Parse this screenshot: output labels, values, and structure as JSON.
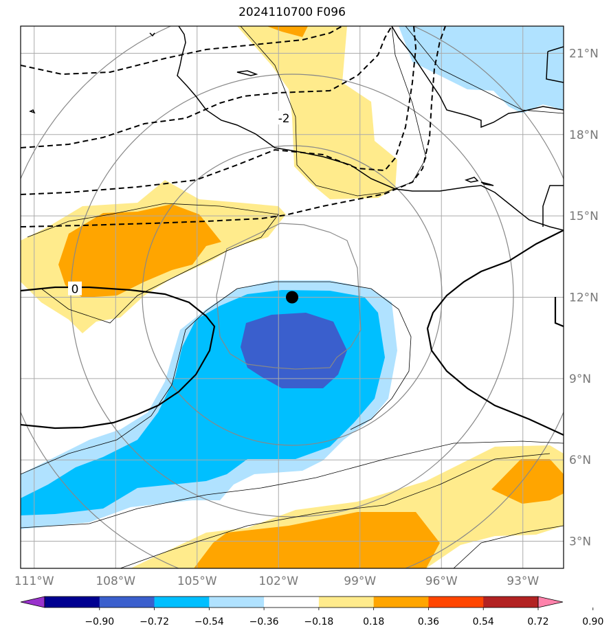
{
  "title": "2024110700 F096",
  "map": {
    "lon_range": [
      -111.5,
      -91.5
    ],
    "lat_range": [
      2.0,
      22.0
    ],
    "lon_ticks": [
      {
        "value": -111,
        "label": "111°W"
      },
      {
        "value": -108,
        "label": "108°W"
      },
      {
        "value": -105,
        "label": "105°W"
      },
      {
        "value": -102,
        "label": "102°W"
      },
      {
        "value": -99,
        "label": "99°W"
      },
      {
        "value": -96,
        "label": "96°W"
      },
      {
        "value": -93,
        "label": "93°W"
      }
    ],
    "lat_ticks": [
      {
        "value": 3,
        "label": "3°N"
      },
      {
        "value": 6,
        "label": "6°N"
      },
      {
        "value": 9,
        "label": "9°N"
      },
      {
        "value": 12,
        "label": "12°N"
      },
      {
        "value": 15,
        "label": "15°N"
      },
      {
        "value": 18,
        "label": "18°N"
      },
      {
        "value": 21,
        "label": "21°N"
      }
    ],
    "contour_labels": [
      {
        "text": "-2",
        "lon": -101.8,
        "lat": 18.6
      },
      {
        "text": "0",
        "lon": -109.5,
        "lat": 12.3
      }
    ],
    "center_marker": {
      "lon": -101.5,
      "lat": 12.0
    }
  },
  "colorbar": {
    "colors": [
      "#9932cc",
      "#000090",
      "#3a5fcd",
      "#00bfff",
      "#b0e2ff",
      "#ffffff",
      "#ffeb8c",
      "#ffa500",
      "#ff4500",
      "#b22222",
      "#ff82ab"
    ],
    "labels": [
      "−0.90",
      "−0.72",
      "−0.54",
      "−0.36",
      "−0.18",
      "0.18",
      "0.36",
      "0.54",
      "0.72",
      "0.90"
    ]
  },
  "colors": {
    "light_blue": "#b0e2ff",
    "blue": "#00bfff",
    "royal_blue": "#3a5fcd",
    "yellow": "#ffeb8c",
    "orange": "#ffa500",
    "grid": "#aaaaaa",
    "circles": "#888888"
  }
}
